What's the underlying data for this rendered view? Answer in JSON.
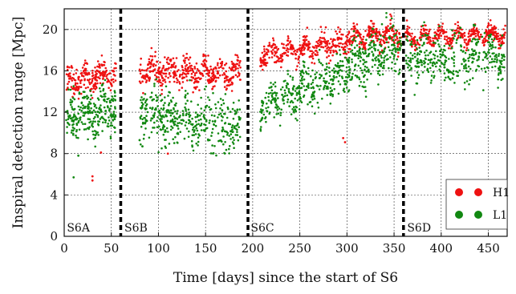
{
  "chart_data": {
    "type": "scatter",
    "title": "",
    "xlabel": "Time [days] since the start of S6",
    "ylabel": "Inspiral detection range [Mpc]",
    "xlim": [
      0,
      470
    ],
    "ylim": [
      0,
      22
    ],
    "xticks": [
      0,
      50,
      100,
      150,
      200,
      250,
      300,
      350,
      400,
      450
    ],
    "yticks": [
      0,
      4,
      8,
      12,
      16,
      20
    ],
    "grid": true,
    "legend_position": "bottom-right",
    "epoch_boundaries": [
      60,
      195,
      360
    ],
    "epoch_labels": [
      {
        "label": "S6A",
        "x": 2
      },
      {
        "label": "S6B",
        "x": 63
      },
      {
        "label": "S6C",
        "x": 197
      },
      {
        "label": "S6D",
        "x": 363
      }
    ],
    "series": [
      {
        "name": "H1",
        "color": "#ee1111",
        "segments": [
          {
            "x0": 2,
            "x1": 55,
            "start": 15.0,
            "end": 15.8,
            "spread": 1.1,
            "n": 220
          },
          {
            "x0": 80,
            "x1": 187,
            "start": 16.0,
            "end": 15.8,
            "spread": 1.2,
            "n": 420
          },
          {
            "x0": 208,
            "x1": 300,
            "start": 17.5,
            "end": 18.8,
            "spread": 1.0,
            "n": 320
          },
          {
            "x0": 300,
            "x1": 358,
            "start": 19.2,
            "end": 19.5,
            "spread": 0.9,
            "n": 220
          },
          {
            "x0": 362,
            "x1": 468,
            "start": 19.3,
            "end": 19.5,
            "spread": 0.7,
            "n": 360
          }
        ],
        "outliers": [
          {
            "x": 30,
            "y": 5.8
          },
          {
            "x": 30,
            "y": 5.4
          },
          {
            "x": 39,
            "y": 8.1
          },
          {
            "x": 110,
            "y": 8.0
          },
          {
            "x": 296,
            "y": 9.5
          },
          {
            "x": 298,
            "y": 9.1
          }
        ]
      },
      {
        "name": "L1",
        "color": "#118811",
        "segments": [
          {
            "x0": 2,
            "x1": 55,
            "start": 11.5,
            "end": 12.5,
            "spread": 2.2,
            "n": 260
          },
          {
            "x0": 80,
            "x1": 187,
            "start": 12.0,
            "end": 10.5,
            "spread": 2.3,
            "n": 420
          },
          {
            "x0": 208,
            "x1": 300,
            "start": 12.5,
            "end": 16.0,
            "spread": 1.8,
            "n": 340
          },
          {
            "x0": 300,
            "x1": 358,
            "start": 16.5,
            "end": 18.5,
            "spread": 2.2,
            "n": 240
          },
          {
            "x0": 362,
            "x1": 468,
            "start": 17.0,
            "end": 17.5,
            "spread": 2.2,
            "n": 360
          }
        ],
        "outliers": [
          {
            "x": 10,
            "y": 5.7
          },
          {
            "x": 15,
            "y": 7.8
          },
          {
            "x": 80,
            "y": 9.3
          },
          {
            "x": 83,
            "y": 8.7
          }
        ]
      }
    ]
  }
}
